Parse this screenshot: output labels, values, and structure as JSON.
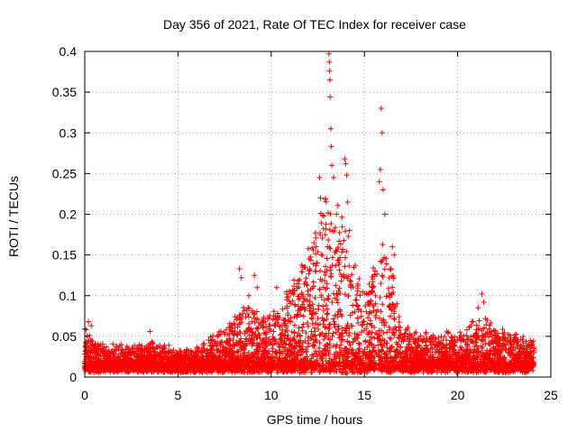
{
  "chart_data": {
    "type": "scatter",
    "title": "Day 356 of 2021, Rate Of TEC Index for receiver case",
    "xlabel": "GPS time / hours",
    "ylabel": "ROTI / TECUs",
    "xlim": [
      0,
      25
    ],
    "ylim": [
      0,
      0.4
    ],
    "xticks": [
      "0",
      "5",
      "10",
      "15",
      "20",
      "25"
    ],
    "yticks": [
      "0",
      "0.05",
      "0.1",
      "0.15",
      "0.2",
      "0.25",
      "0.3",
      "0.35",
      "0.4"
    ],
    "grid": true,
    "marker": "plus",
    "color": "#ff0000",
    "series": [
      {
        "name": "ROTI",
        "envelope": {
          "hours": [
            0,
            0.5,
            1,
            2,
            3,
            3.5,
            4,
            5,
            6,
            7,
            8,
            8.5,
            9,
            9.5,
            10,
            10.5,
            11,
            11.5,
            12,
            12.5,
            13,
            13.3,
            13.6,
            14,
            14.5,
            15,
            15.5,
            16,
            16.5,
            17,
            18,
            19,
            20,
            21,
            21.5,
            22,
            23,
            24
          ],
          "typical_max": [
            0.05,
            0.035,
            0.025,
            0.025,
            0.025,
            0.03,
            0.028,
            0.022,
            0.02,
            0.04,
            0.06,
            0.08,
            0.07,
            0.06,
            0.07,
            0.08,
            0.1,
            0.12,
            0.15,
            0.18,
            0.22,
            0.22,
            0.2,
            0.18,
            0.13,
            0.1,
            0.12,
            0.16,
            0.12,
            0.05,
            0.04,
            0.04,
            0.04,
            0.06,
            0.06,
            0.05,
            0.04,
            0.03
          ]
        },
        "peaks": [
          {
            "x": 0.2,
            "y": 0.068
          },
          {
            "x": 0.35,
            "y": 0.063
          },
          {
            "x": 3.5,
            "y": 0.056
          },
          {
            "x": 8.3,
            "y": 0.133
          },
          {
            "x": 8.4,
            "y": 0.122
          },
          {
            "x": 8.8,
            "y": 0.1
          },
          {
            "x": 9.1,
            "y": 0.125
          },
          {
            "x": 9.25,
            "y": 0.11
          },
          {
            "x": 10.3,
            "y": 0.11
          },
          {
            "x": 11.7,
            "y": 0.135
          },
          {
            "x": 12.4,
            "y": 0.16
          },
          {
            "x": 12.6,
            "y": 0.245
          },
          {
            "x": 12.65,
            "y": 0.22
          },
          {
            "x": 12.9,
            "y": 0.175
          },
          {
            "x": 13.1,
            "y": 0.397
          },
          {
            "x": 13.12,
            "y": 0.387
          },
          {
            "x": 13.13,
            "y": 0.376
          },
          {
            "x": 13.15,
            "y": 0.365
          },
          {
            "x": 13.16,
            "y": 0.344
          },
          {
            "x": 13.2,
            "y": 0.305
          },
          {
            "x": 13.22,
            "y": 0.283
          },
          {
            "x": 13.25,
            "y": 0.26
          },
          {
            "x": 13.35,
            "y": 0.245
          },
          {
            "x": 13.5,
            "y": 0.2
          },
          {
            "x": 13.95,
            "y": 0.268
          },
          {
            "x": 14.0,
            "y": 0.262
          },
          {
            "x": 14.05,
            "y": 0.248
          },
          {
            "x": 14.1,
            "y": 0.215
          },
          {
            "x": 14.2,
            "y": 0.18
          },
          {
            "x": 15.6,
            "y": 0.09
          },
          {
            "x": 15.9,
            "y": 0.33
          },
          {
            "x": 15.95,
            "y": 0.3
          },
          {
            "x": 15.85,
            "y": 0.255
          },
          {
            "x": 15.8,
            "y": 0.24
          },
          {
            "x": 16.0,
            "y": 0.23
          },
          {
            "x": 16.1,
            "y": 0.2
          },
          {
            "x": 16.5,
            "y": 0.16
          },
          {
            "x": 16.6,
            "y": 0.15
          },
          {
            "x": 18.3,
            "y": 0.055
          },
          {
            "x": 19.5,
            "y": 0.055
          },
          {
            "x": 20.5,
            "y": 0.058
          },
          {
            "x": 21.1,
            "y": 0.085
          },
          {
            "x": 21.3,
            "y": 0.102
          },
          {
            "x": 21.4,
            "y": 0.092
          },
          {
            "x": 21.6,
            "y": 0.055
          },
          {
            "x": 22.2,
            "y": 0.045
          },
          {
            "x": 22.7,
            "y": 0.043
          },
          {
            "x": 23.9,
            "y": 0.045
          }
        ]
      }
    ]
  }
}
